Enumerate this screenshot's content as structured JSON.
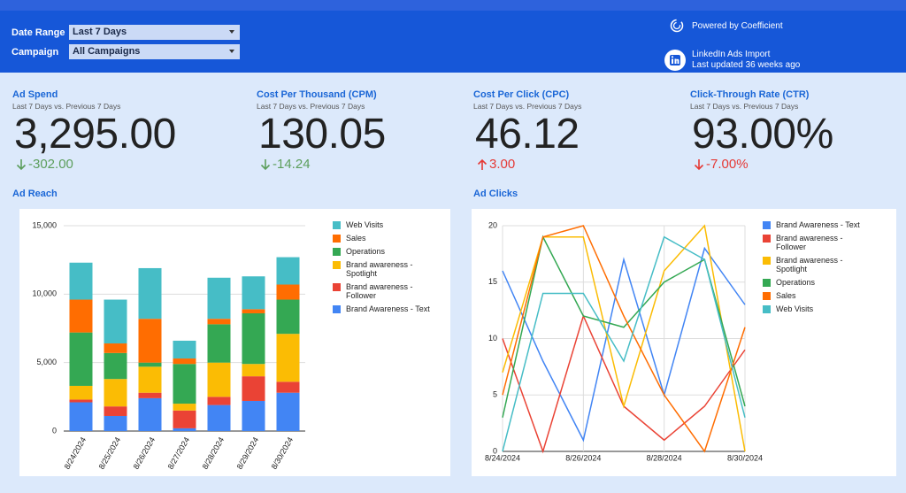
{
  "header": {
    "filters": [
      {
        "label": "Date Range",
        "value": "Last 7 Days"
      },
      {
        "label": "Campaign",
        "value": "All Campaigns"
      }
    ],
    "powered_by": "Powered by Coefficient",
    "source": "LinkedIn Ads Import",
    "updated": "Last updated 36 weeks ago"
  },
  "kpis": [
    {
      "title": "Ad Spend",
      "subtitle": "Last 7 Days vs. Previous 7 Days",
      "value": "3,295.00",
      "delta": "-302.00",
      "trend": "down",
      "color": "#5c9e5c"
    },
    {
      "title": "Cost Per Thousand (CPM)",
      "subtitle": "Last 7 Days vs. Previous 7 Days",
      "value": "130.05",
      "delta": "-14.24",
      "trend": "down",
      "color": "#5c9e5c"
    },
    {
      "title": "Cost Per Click (CPC)",
      "subtitle": "Last 7 Days vs. Previous 7 Days",
      "value": "46.12",
      "delta": "3.00",
      "trend": "up",
      "color": "#e53935"
    },
    {
      "title": "Click-Through Rate (CTR)",
      "subtitle": "Last 7 Days vs. Previous 7 Days",
      "value": "93.00%",
      "delta": "-7.00%",
      "trend": "down",
      "color": "#e53935"
    }
  ],
  "chart_data": [
    {
      "type": "bar",
      "stacked": true,
      "title": "Ad Reach",
      "categories": [
        "8/24/2024",
        "8/25/2024",
        "8/26/2024",
        "8/27/2024",
        "8/28/2024",
        "8/29/2024",
        "8/30/2024"
      ],
      "series": [
        {
          "name": "Brand Awareness - Text",
          "color": "#4285f4",
          "values": [
            2100,
            1100,
            2400,
            200,
            1900,
            2200,
            2800
          ]
        },
        {
          "name": "Brand awareness - Follower",
          "color": "#ea4335",
          "values": [
            200,
            700,
            400,
            1300,
            600,
            1800,
            800
          ]
        },
        {
          "name": "Brand awareness - Spotlight",
          "color": "#fbbc04",
          "values": [
            1000,
            2000,
            1900,
            500,
            2500,
            900,
            3500
          ]
        },
        {
          "name": "Operations",
          "color": "#34a853",
          "values": [
            3900,
            1900,
            300,
            2900,
            2800,
            3700,
            2500
          ]
        },
        {
          "name": "Sales",
          "color": "#ff6d01",
          "values": [
            2400,
            700,
            3200,
            400,
            400,
            300,
            1100
          ]
        },
        {
          "name": "Web Visits",
          "color": "#46bdc6",
          "values": [
            2700,
            3200,
            3700,
            1300,
            3000,
            2400,
            2000
          ]
        }
      ],
      "ylim": [
        0,
        15000
      ],
      "yticks": [
        0,
        {
          "value": 5000,
          "label": "5,000"
        },
        {
          "value": 10000,
          "label": "10,000"
        },
        {
          "value": 15000,
          "label": "15,000"
        }
      ],
      "grid": true,
      "legend": "right"
    },
    {
      "type": "line",
      "title": "Ad Clicks",
      "categories": [
        "8/24/2024",
        null,
        "8/26/2024",
        null,
        "8/28/2024",
        null,
        "8/30/2024"
      ],
      "series": [
        {
          "name": "Brand Awareness - Text",
          "color": "#4285f4",
          "values": [
            16,
            8,
            1,
            17,
            5,
            18,
            13
          ]
        },
        {
          "name": "Brand awareness - Follower",
          "color": "#ea4335",
          "values": [
            10,
            0,
            12,
            4,
            1,
            4,
            9
          ]
        },
        {
          "name": "Brand awareness - Spotlight",
          "color": "#fbbc04",
          "values": [
            7,
            19,
            19,
            4,
            16,
            20,
            0
          ]
        },
        {
          "name": "Operations",
          "color": "#34a853",
          "values": [
            3,
            19,
            12,
            11,
            15,
            17,
            4
          ]
        },
        {
          "name": "Sales",
          "color": "#ff6d01",
          "values": [
            5,
            19,
            20,
            12,
            5,
            0,
            11
          ]
        },
        {
          "name": "Web Visits",
          "color": "#46bdc6",
          "values": [
            0,
            14,
            14,
            8,
            19,
            17,
            3
          ]
        }
      ],
      "ylim": [
        0,
        20
      ],
      "yticks": [
        0,
        5,
        10,
        15,
        20
      ],
      "grid": true,
      "legend": "right"
    }
  ]
}
